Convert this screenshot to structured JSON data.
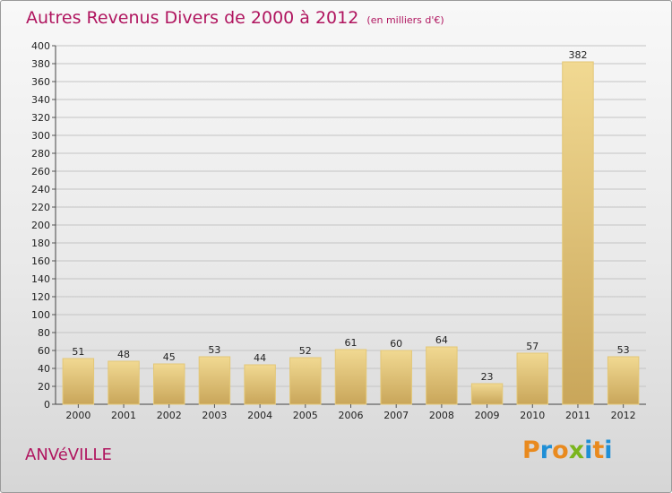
{
  "title": "Autres Revenus Divers de 2000 à 2012",
  "title_unit": "(en milliers d'€)",
  "commune": "ANVéVILLE",
  "logo": {
    "letters": [
      "P",
      "r",
      "o",
      "x",
      "i",
      "t",
      "i"
    ],
    "colors": [
      "#e98a1e",
      "#1f8fd6",
      "#e98a1e",
      "#7ab51d",
      "#1f8fd6",
      "#e98a1e",
      "#1f8fd6"
    ]
  },
  "chart_data": {
    "type": "bar",
    "title": "Autres Revenus Divers de 2000 à 2012",
    "subtitle": "(en milliers d'€)",
    "xlabel": "",
    "ylabel": "",
    "categories": [
      "2000",
      "2001",
      "2002",
      "2003",
      "2004",
      "2005",
      "2006",
      "2007",
      "2008",
      "2009",
      "2010",
      "2011",
      "2012"
    ],
    "values": [
      51,
      48,
      45,
      53,
      44,
      52,
      61,
      60,
      64,
      23,
      57,
      382,
      53
    ],
    "ylim": [
      0,
      400
    ],
    "yticks": [
      0,
      20,
      40,
      60,
      80,
      100,
      120,
      140,
      160,
      180,
      200,
      220,
      240,
      260,
      280,
      300,
      320,
      340,
      360,
      380,
      400
    ],
    "grid": true,
    "bar_color": "#f1d992",
    "bar_color_dark": "#c9a65a"
  }
}
